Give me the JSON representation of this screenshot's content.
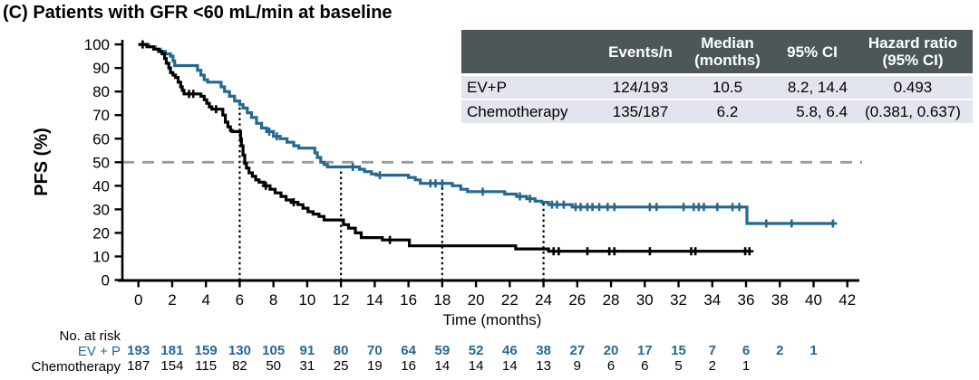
{
  "title": "(C) Patients with GFR <60 mL/min at baseline",
  "colors": {
    "evp_blue": "#266890",
    "chemo_black": "#000000",
    "reference_dash_gray": "#9c9c9c",
    "table_header_bg": "#4d5758",
    "table_row_bg": "#e2e4ee"
  },
  "stats_table": {
    "headers": [
      "",
      "Events/n",
      "Median\n(months)",
      "95% CI",
      "Hazard ratio\n(95% CI)"
    ],
    "rows": [
      [
        "EV+P",
        "124/193",
        "10.5",
        "8.2, 14.4",
        "0.493"
      ],
      [
        "Chemotherapy",
        "135/187",
        "6.2",
        "5.8, 6.4",
        "(0.381, 0.637)"
      ]
    ]
  },
  "risk_table": {
    "title": "No. at risk",
    "start_month": 0,
    "month_step": 2,
    "groups": [
      {
        "label": "EV + P",
        "color": "#266890",
        "bold": true,
        "values": [
          193,
          181,
          159,
          130,
          105,
          91,
          80,
          70,
          64,
          59,
          52,
          46,
          38,
          27,
          20,
          17,
          15,
          7,
          6,
          2,
          1
        ]
      },
      {
        "label": "Chemotherapy",
        "color": "#000000",
        "bold": false,
        "values": [
          187,
          154,
          115,
          82,
          50,
          31,
          25,
          19,
          16,
          14,
          14,
          14,
          13,
          9,
          6,
          6,
          5,
          2,
          1
        ]
      }
    ]
  },
  "chart_data": {
    "type": "line",
    "subtype": "kaplan-meier-step",
    "title": "(C) Patients with GFR <60 mL/min at baseline",
    "xlabel": "Time (months)",
    "ylabel": "PFS (%)",
    "xlim": [
      0,
      42
    ],
    "ylim": [
      0,
      100
    ],
    "xticks": [
      0,
      2,
      4,
      6,
      8,
      10,
      12,
      14,
      16,
      18,
      20,
      22,
      24,
      26,
      28,
      30,
      32,
      34,
      36,
      38,
      40,
      42
    ],
    "yticks": [
      0,
      10,
      20,
      30,
      40,
      50,
      60,
      70,
      80,
      90,
      100
    ],
    "grid": false,
    "reference_line_y": 50,
    "droplines": [
      {
        "month": 6,
        "to": 74.5
      },
      {
        "month": 12,
        "to": 48
      },
      {
        "month": 18,
        "to": 41
      },
      {
        "month": 24,
        "to": 33
      }
    ],
    "series": [
      {
        "name": "EV+P",
        "color": "#266890",
        "median_months": 10.5,
        "steps": [
          [
            0,
            100
          ],
          [
            0.6,
            99
          ],
          [
            1.0,
            98
          ],
          [
            1.3,
            97
          ],
          [
            1.6,
            96
          ],
          [
            1.9,
            95
          ],
          [
            2.05,
            93
          ],
          [
            2.15,
            91
          ],
          [
            3.3,
            91
          ],
          [
            3.5,
            89
          ],
          [
            3.7,
            87
          ],
          [
            3.9,
            85
          ],
          [
            4.1,
            84
          ],
          [
            4.7,
            84
          ],
          [
            4.9,
            82
          ],
          [
            5.1,
            80
          ],
          [
            5.4,
            78
          ],
          [
            5.7,
            76
          ],
          [
            6.0,
            74.5
          ],
          [
            6.2,
            73
          ],
          [
            6.45,
            71
          ],
          [
            6.7,
            69
          ],
          [
            7.0,
            66.5
          ],
          [
            7.3,
            64.5
          ],
          [
            7.6,
            63
          ],
          [
            8.0,
            61
          ],
          [
            8.4,
            60
          ],
          [
            8.8,
            58.5
          ],
          [
            9.2,
            57
          ],
          [
            9.5,
            56
          ],
          [
            10.3,
            56
          ],
          [
            10.45,
            54
          ],
          [
            10.6,
            52
          ],
          [
            10.8,
            50
          ],
          [
            11.0,
            49
          ],
          [
            11.2,
            48
          ],
          [
            12.8,
            48
          ],
          [
            13.1,
            47
          ],
          [
            13.4,
            46
          ],
          [
            13.8,
            45
          ],
          [
            14.1,
            44.5
          ],
          [
            15.6,
            44.5
          ],
          [
            16.0,
            43.5
          ],
          [
            16.4,
            42.5
          ],
          [
            16.7,
            41
          ],
          [
            18.2,
            41
          ],
          [
            18.6,
            40
          ],
          [
            19.1,
            38.5
          ],
          [
            19.5,
            37.5
          ],
          [
            21.2,
            37.5
          ],
          [
            21.7,
            36.5
          ],
          [
            22.4,
            35.5
          ],
          [
            23.0,
            34.5
          ],
          [
            23.5,
            33.5
          ],
          [
            23.9,
            33
          ],
          [
            24.3,
            32
          ],
          [
            25.7,
            31
          ],
          [
            36.0,
            31
          ],
          [
            36.05,
            24
          ],
          [
            41.15,
            24
          ]
        ],
        "censors": [
          [
            0.25,
            100
          ],
          [
            7.75,
            63
          ],
          [
            8.2,
            61
          ],
          [
            12.7,
            48
          ],
          [
            14.3,
            44.5
          ],
          [
            17.3,
            41
          ],
          [
            17.6,
            41
          ],
          [
            18.0,
            41
          ],
          [
            20.4,
            37.5
          ],
          [
            22.6,
            35.5
          ],
          [
            23.2,
            34.5
          ],
          [
            24.5,
            32
          ],
          [
            24.8,
            32
          ],
          [
            25.2,
            32
          ],
          [
            25.9,
            31
          ],
          [
            26.2,
            31
          ],
          [
            26.6,
            31
          ],
          [
            26.9,
            31
          ],
          [
            27.3,
            31
          ],
          [
            27.8,
            31
          ],
          [
            28.2,
            31
          ],
          [
            30.3,
            31
          ],
          [
            30.7,
            31
          ],
          [
            32.3,
            31
          ],
          [
            32.9,
            31
          ],
          [
            33.2,
            31
          ],
          [
            33.5,
            31
          ],
          [
            34.3,
            31
          ],
          [
            35.2,
            31
          ],
          [
            35.6,
            31
          ],
          [
            37.2,
            24
          ],
          [
            38.7,
            24
          ],
          [
            41.15,
            24
          ]
        ]
      },
      {
        "name": "Chemotherapy",
        "color": "#000000",
        "median_months": 6.2,
        "steps": [
          [
            0,
            100
          ],
          [
            0.5,
            99
          ],
          [
            0.9,
            98
          ],
          [
            1.2,
            97
          ],
          [
            1.4,
            96
          ],
          [
            1.55,
            94
          ],
          [
            1.65,
            92
          ],
          [
            1.8,
            90
          ],
          [
            1.9,
            88
          ],
          [
            2.05,
            87
          ],
          [
            2.2,
            86
          ],
          [
            2.35,
            84
          ],
          [
            2.5,
            82
          ],
          [
            2.6,
            80.5
          ],
          [
            2.7,
            79
          ],
          [
            3.5,
            79
          ],
          [
            3.7,
            78
          ],
          [
            3.9,
            76.5
          ],
          [
            4.05,
            75
          ],
          [
            4.2,
            73.5
          ],
          [
            4.35,
            72.5
          ],
          [
            4.85,
            72.5
          ],
          [
            5.0,
            70
          ],
          [
            5.15,
            67
          ],
          [
            5.3,
            65
          ],
          [
            5.45,
            63.5
          ],
          [
            5.55,
            63
          ],
          [
            6.0,
            63
          ],
          [
            6.05,
            60
          ],
          [
            6.1,
            57
          ],
          [
            6.2,
            53
          ],
          [
            6.3,
            49.5
          ],
          [
            6.4,
            47.5
          ],
          [
            6.55,
            45.5
          ],
          [
            6.75,
            44
          ],
          [
            6.95,
            42.5
          ],
          [
            7.15,
            41.5
          ],
          [
            7.45,
            40
          ],
          [
            7.8,
            38.5
          ],
          [
            8.1,
            37
          ],
          [
            8.45,
            35.5
          ],
          [
            8.75,
            34
          ],
          [
            9.05,
            33
          ],
          [
            9.45,
            32
          ],
          [
            9.75,
            30.5
          ],
          [
            10.05,
            29
          ],
          [
            10.35,
            28
          ],
          [
            10.7,
            27
          ],
          [
            11.0,
            25.5
          ],
          [
            11.95,
            25.5
          ],
          [
            12.15,
            23.5
          ],
          [
            12.45,
            22
          ],
          [
            12.85,
            20
          ],
          [
            13.2,
            18
          ],
          [
            14.35,
            18
          ],
          [
            14.45,
            17
          ],
          [
            15.95,
            17
          ],
          [
            16.05,
            14.5
          ],
          [
            22.15,
            14.5
          ],
          [
            22.35,
            13.2
          ],
          [
            24.2,
            13.2
          ],
          [
            24.3,
            12.2
          ],
          [
            36.2,
            12.2
          ]
        ],
        "censors": [
          [
            0.25,
            100
          ],
          [
            3.0,
            79
          ],
          [
            3.25,
            79
          ],
          [
            4.6,
            72.5
          ],
          [
            7.55,
            40
          ],
          [
            9.2,
            33
          ],
          [
            14.9,
            17
          ],
          [
            24.6,
            12.2
          ],
          [
            24.9,
            12.2
          ],
          [
            26.6,
            12.2
          ],
          [
            27.9,
            12.2
          ],
          [
            28.2,
            12.2
          ],
          [
            30.3,
            12.2
          ],
          [
            32.75,
            12.2
          ],
          [
            33.0,
            12.2
          ],
          [
            35.95,
            12.2
          ],
          [
            36.2,
            12.2
          ]
        ]
      }
    ]
  }
}
